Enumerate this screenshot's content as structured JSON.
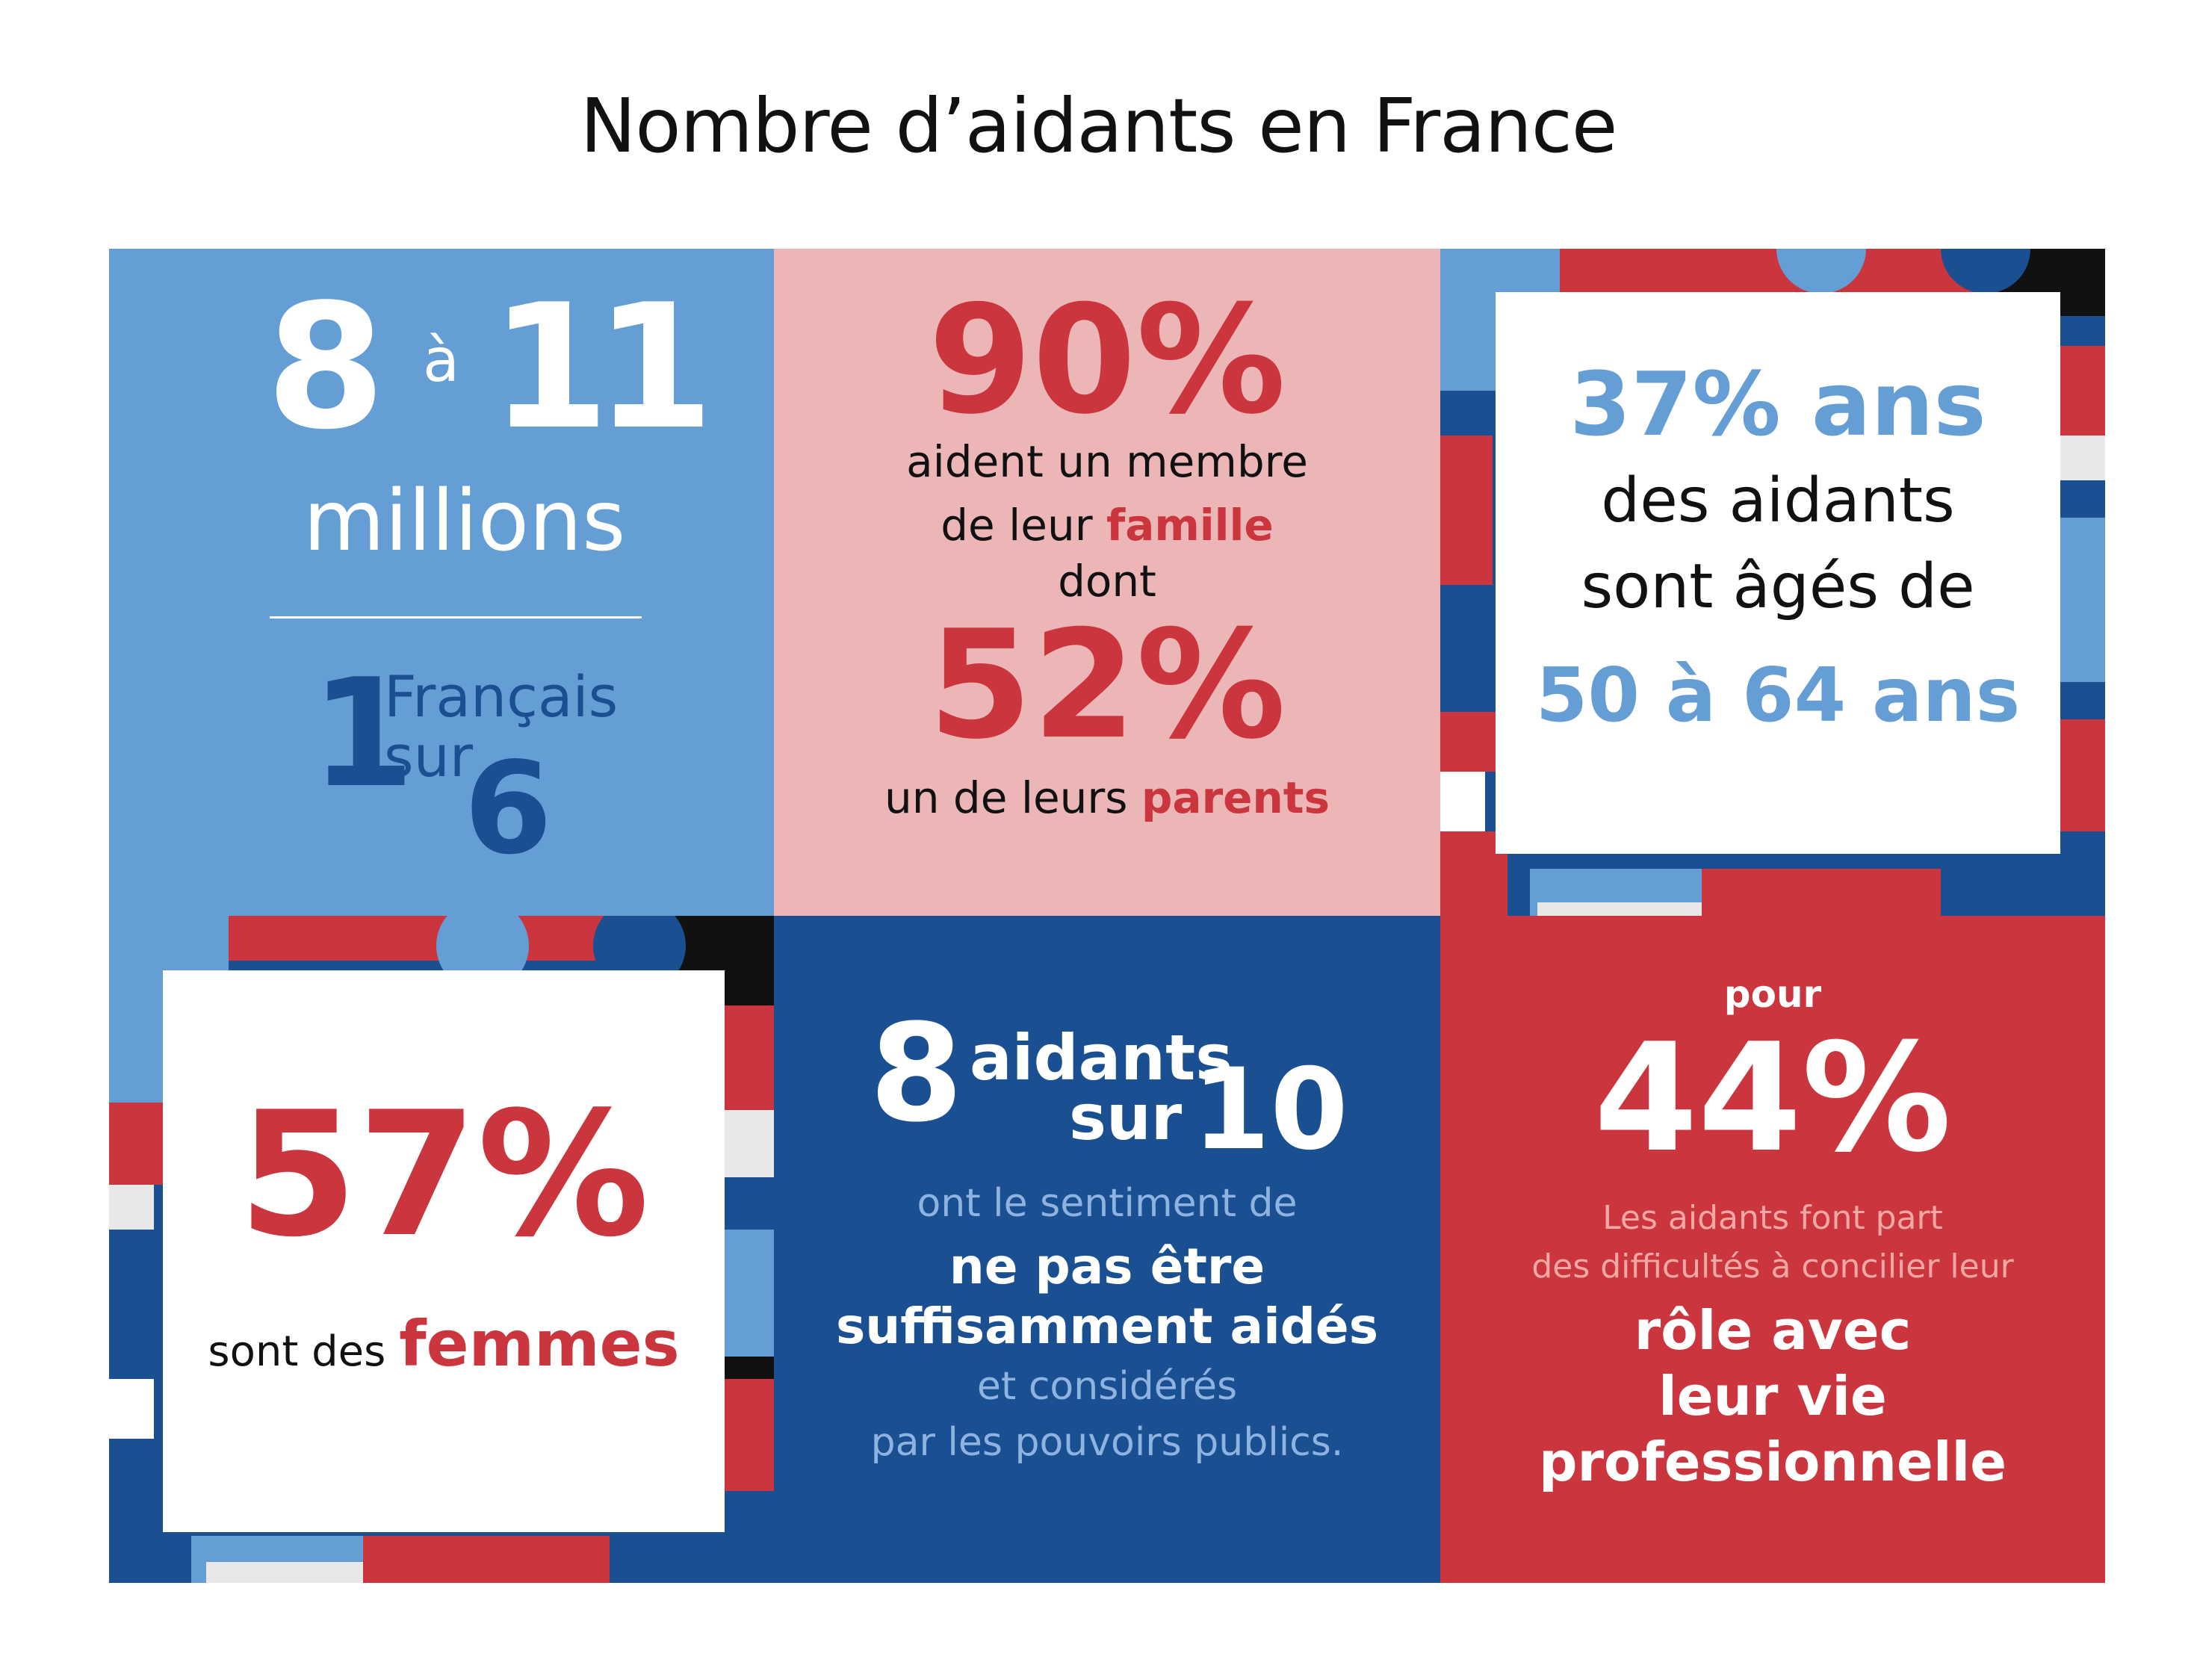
{
  "title": "Nombre d’aidants en France",
  "colors": {
    "light_blue": "#659ED5",
    "pink": "#ECB5B6",
    "navy": "#1A4F92",
    "red": "#CB353D",
    "white": "#FFFFFF",
    "black": "#111111"
  },
  "tile_millions": {
    "from": "8",
    "connector": "à",
    "to": "11",
    "unit": "millions",
    "ratio_number": "1",
    "ratio_text_line1": "Français",
    "ratio_text_line2": "sur",
    "ratio_denominator": "6"
  },
  "tile_famille": {
    "pct1": "90%",
    "line1": "aident un membre",
    "line2_prefix": "de leur ",
    "line2_emph": "famille",
    "line3": "dont",
    "pct2": "52%",
    "line4_prefix": "un de leurs ",
    "line4_emph": "parents"
  },
  "tile_age": {
    "pct": "37% ans",
    "line1": "des aidants",
    "line2": "sont âgés de",
    "range": "50 à 64 ans"
  },
  "tile_femmes": {
    "pct": "57%",
    "prefix": "sont des ",
    "emph": "femmes"
  },
  "tile_sentiment": {
    "num": "8",
    "word": "aidants",
    "sur": "sur",
    "den": "10",
    "line1": "ont le sentiment de",
    "emph1": "ne pas être",
    "emph2": "suffisamment aidés",
    "line2": "et considérés",
    "line3": "par les pouvoirs publics."
  },
  "tile_pro": {
    "pour": "pour",
    "pct": "44%",
    "line1": "Les aidants font part",
    "line2": "des difficultés à concilier leur",
    "emph1": "rôle avec",
    "emph2": "leur vie",
    "emph3": "professionnelle"
  }
}
